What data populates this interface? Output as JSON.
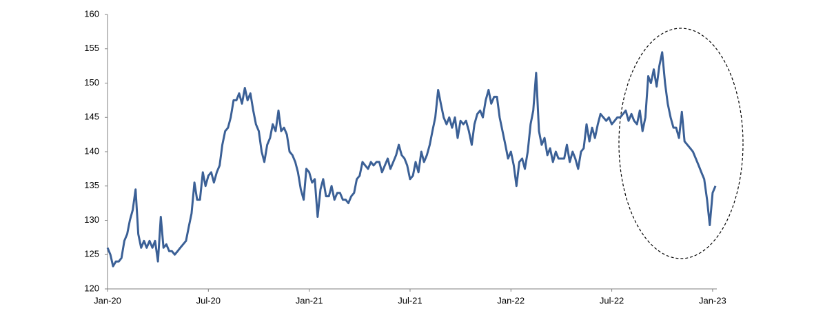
{
  "chart_data": {
    "type": "line",
    "color": "#3b6096",
    "x": [
      0,
      0.17,
      0.33,
      0.5,
      0.67,
      0.83,
      1,
      1.17,
      1.33,
      1.5,
      1.67,
      1.83,
      2,
      2.17,
      2.33,
      2.5,
      2.67,
      2.83,
      3,
      3.17,
      3.33,
      3.5,
      3.67,
      3.83,
      4,
      4.17,
      4.33,
      4.5,
      4.67,
      4.83,
      5,
      5.17,
      5.33,
      5.5,
      5.67,
      5.83,
      6,
      6.17,
      6.33,
      6.5,
      6.67,
      6.83,
      7,
      7.17,
      7.33,
      7.5,
      7.67,
      7.83,
      8,
      8.17,
      8.33,
      8.5,
      8.67,
      8.83,
      9,
      9.17,
      9.33,
      9.5,
      9.67,
      9.83,
      10,
      10.17,
      10.33,
      10.5,
      10.67,
      10.83,
      11,
      11.17,
      11.33,
      11.5,
      11.67,
      11.83,
      12,
      12.17,
      12.33,
      12.5,
      12.67,
      12.83,
      13,
      13.17,
      13.33,
      13.5,
      13.67,
      13.83,
      14,
      14.17,
      14.33,
      14.5,
      14.67,
      14.83,
      15,
      15.17,
      15.33,
      15.5,
      15.67,
      15.83,
      16,
      16.17,
      16.33,
      16.5,
      16.67,
      16.83,
      17,
      17.17,
      17.33,
      17.5,
      17.67,
      17.83,
      18,
      18.17,
      18.33,
      18.5,
      18.67,
      18.83,
      19,
      19.17,
      19.33,
      19.5,
      19.67,
      19.83,
      20,
      20.17,
      20.33,
      20.5,
      20.67,
      20.83,
      21,
      21.17,
      21.33,
      21.5,
      21.67,
      21.83,
      22,
      22.17,
      22.33,
      22.5,
      22.67,
      22.83,
      23,
      23.17,
      23.33,
      23.5,
      23.67,
      23.83,
      24,
      24.17,
      24.33,
      24.5,
      24.67,
      24.83,
      25,
      25.17,
      25.33,
      25.5,
      25.67,
      25.83,
      26,
      26.17,
      26.33,
      26.5,
      26.67,
      26.83,
      27,
      27.17,
      27.33,
      27.5,
      27.67,
      27.83,
      28,
      28.17,
      28.33,
      28.5,
      28.67,
      28.83,
      29,
      29.17,
      29.33,
      29.5,
      29.67,
      29.83,
      30,
      30.17,
      30.33,
      30.5,
      30.67,
      30.83,
      31,
      31.17,
      31.33,
      31.5,
      31.67,
      31.83,
      32,
      32.17,
      32.33,
      32.5,
      32.67,
      32.83,
      33,
      33.17,
      33.33,
      33.5,
      33.67,
      33.83,
      34,
      34.17,
      34.33,
      34.5,
      34.67,
      34.83,
      35,
      35.17,
      35.33,
      35.5,
      35.67,
      35.83,
      36,
      36.17
    ],
    "values": [
      126,
      125,
      123.3,
      124,
      124,
      124.5,
      127,
      128,
      130,
      131.5,
      134.5,
      128,
      126,
      127,
      126,
      127,
      126,
      127,
      124,
      130.5,
      126,
      126.5,
      125.5,
      125.5,
      125,
      125.5,
      126,
      126.5,
      127,
      129,
      131,
      135.5,
      133,
      133,
      137,
      135,
      136.5,
      137,
      135.5,
      137,
      138,
      141,
      143,
      143.5,
      145,
      147.5,
      147.5,
      148.5,
      147,
      149.3,
      147.5,
      148.5,
      146,
      144,
      143,
      140,
      138.5,
      141,
      142,
      144,
      143,
      146,
      143,
      143.5,
      142.5,
      140,
      139.5,
      138.5,
      137,
      134.5,
      133,
      137.5,
      137,
      135.5,
      136,
      130.5,
      134.5,
      136,
      133.5,
      133.5,
      135,
      133,
      134,
      134,
      133,
      133,
      132.5,
      133.5,
      134,
      136,
      136.5,
      138.5,
      138,
      137.5,
      138.5,
      138,
      138.5,
      138.5,
      137,
      138,
      139,
      137.5,
      138.5,
      139.5,
      141,
      139.5,
      139,
      138,
      136,
      136.5,
      138.5,
      137,
      140,
      138.5,
      139.5,
      141,
      143,
      145,
      149,
      147,
      145,
      144,
      145,
      143.5,
      145,
      142,
      144.5,
      144,
      144.5,
      143,
      141,
      144,
      145.5,
      146,
      145,
      147.5,
      149,
      147,
      148,
      148,
      145,
      143,
      141,
      139,
      140,
      138,
      135,
      138.5,
      139,
      137.5,
      140,
      144,
      146,
      151.5,
      143,
      141,
      142,
      139.5,
      140.5,
      138.5,
      140,
      139,
      139,
      139,
      141,
      138.5,
      140,
      139,
      137.5,
      140,
      140.5,
      144,
      141.5,
      143.5,
      142,
      144,
      145.5,
      145,
      144.5,
      145,
      144,
      144.5,
      145,
      145,
      145.5,
      146,
      144.5,
      145.5,
      144.5,
      144,
      146,
      143,
      145,
      151,
      150,
      152,
      149.5,
      152.5,
      154.5,
      150,
      147,
      145,
      143.5,
      143.5,
      142,
      145.8,
      141.5,
      141,
      140.5,
      140,
      139,
      138,
      137,
      136,
      133,
      129.3,
      134,
      135
    ],
    "xlim": [
      0,
      36.25
    ],
    "ylim": [
      120,
      160
    ],
    "xticks": [
      {
        "value": 0,
        "label": "Jan-20"
      },
      {
        "value": 6,
        "label": "Jul-20"
      },
      {
        "value": 12,
        "label": "Jan-21"
      },
      {
        "value": 18,
        "label": "Jul-21"
      },
      {
        "value": 24,
        "label": "Jan-22"
      },
      {
        "value": 30,
        "label": "Jul-22"
      },
      {
        "value": 36,
        "label": "Jan-23"
      }
    ],
    "yticks": [
      120,
      125,
      130,
      135,
      140,
      145,
      150,
      155,
      160
    ]
  }
}
